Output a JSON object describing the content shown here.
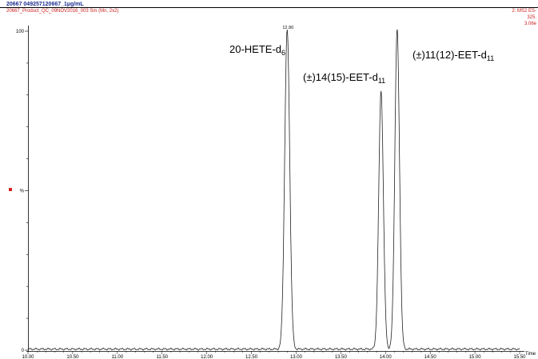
{
  "header": {
    "title": "20667 049257120667_1µg/mL",
    "subtitle": "20667_Product_QC_09NOV2016_003 Sm (Mn, 2x2)",
    "right_line1": "2: MS2 ES-",
    "right_line2": "325.",
    "right_line3": "3.06e"
  },
  "colors": {
    "trace": "#222222",
    "header_title": "#1d2f8f",
    "header_meta": "#cc2222",
    "marker": "#d42020"
  },
  "chart_data": {
    "type": "line",
    "xlim": [
      10.0,
      15.5
    ],
    "ylim": [
      0,
      100
    ],
    "xlabel": "Time",
    "ylabel": "%",
    "x_ticks": [
      "10.00",
      "10.50",
      "11.00",
      "11.50",
      "12.00",
      "12.50",
      "13.00",
      "13.50",
      "14.00",
      "14.50",
      "15.00",
      "15.50"
    ],
    "y_ticks": [
      "0",
      "%",
      "100"
    ],
    "peaks": [
      {
        "rt": 12.9,
        "height": 100,
        "width": 0.028,
        "rt_label": "12.90",
        "label_main": "20-HETE-d",
        "label_sub": "6"
      },
      {
        "rt": 13.95,
        "height": 81,
        "width": 0.026,
        "label_main": "(±)14(15)-EET-d",
        "label_sub": "11"
      },
      {
        "rt": 14.13,
        "height": 100,
        "width": 0.026,
        "label_main": "(±)11(12)-EET-d",
        "label_sub": "11"
      }
    ],
    "baseline_noise_amp": 0.35
  }
}
